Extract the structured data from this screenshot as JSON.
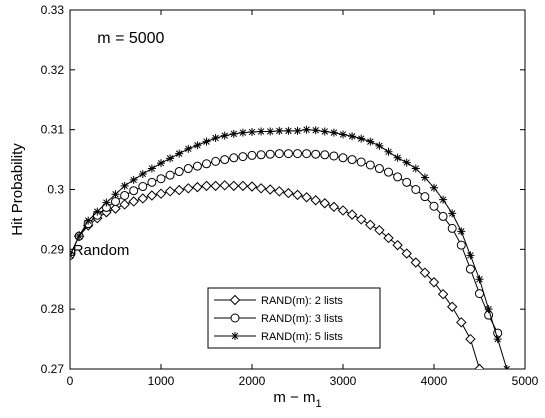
{
  "chart_data": {
    "type": "line",
    "xlabel": "m − m",
    "xlabel_sub": "1",
    "ylabel": "Hit Probability",
    "xlim": [
      0,
      5000
    ],
    "ylim": [
      0.27,
      0.33
    ],
    "xticks": [
      0,
      1000,
      2000,
      3000,
      4000,
      5000
    ],
    "xtick_labels": [
      "0",
      "1000",
      "2000",
      "3000",
      "4000",
      "5000"
    ],
    "yticks": [
      0.27,
      0.28,
      0.29,
      0.3,
      0.31,
      0.32,
      0.33
    ],
    "ytick_labels": [
      "0.27",
      "0.28",
      "0.29",
      "0.3",
      "0.31",
      "0.32",
      "0.33"
    ],
    "grid": false,
    "legend_position": "bottom-center",
    "annotations": [
      {
        "text": "m = 5000",
        "x": 300,
        "y": 0.3245
      },
      {
        "text": "Random",
        "x": 30,
        "y": 0.2892
      }
    ],
    "series": [
      {
        "name": "RAND(m): 2 lists",
        "marker": "diamond",
        "x": [
          0,
          100,
          200,
          300,
          400,
          500,
          600,
          700,
          800,
          900,
          1000,
          1100,
          1200,
          1300,
          1400,
          1500,
          1600,
          1700,
          1800,
          1900,
          2000,
          2100,
          2200,
          2300,
          2400,
          2500,
          2600,
          2700,
          2800,
          2900,
          3000,
          3100,
          3200,
          3300,
          3400,
          3500,
          3600,
          3700,
          3800,
          3900,
          4000,
          4100,
          4200,
          4300,
          4400,
          4500
        ],
        "y": [
          0.289,
          0.2922,
          0.294,
          0.2952,
          0.2962,
          0.2968,
          0.2975,
          0.298,
          0.2985,
          0.299,
          0.2993,
          0.2997,
          0.2999,
          0.3002,
          0.3004,
          0.3006,
          0.3006,
          0.3007,
          0.3006,
          0.3006,
          0.3005,
          0.3002,
          0.3,
          0.2997,
          0.2994,
          0.2991,
          0.2987,
          0.2982,
          0.2977,
          0.2971,
          0.2965,
          0.2958,
          0.295,
          0.2941,
          0.2932,
          0.2919,
          0.2907,
          0.2893,
          0.2878,
          0.2861,
          0.2845,
          0.2825,
          0.2804,
          0.2778,
          0.275,
          0.27
        ]
      },
      {
        "name": "RAND(m): 3 lists",
        "marker": "circle",
        "x": [
          0,
          100,
          200,
          300,
          400,
          500,
          600,
          700,
          800,
          900,
          1000,
          1100,
          1200,
          1300,
          1400,
          1500,
          1600,
          1700,
          1800,
          1900,
          2000,
          2100,
          2200,
          2300,
          2400,
          2500,
          2600,
          2700,
          2800,
          2900,
          3000,
          3100,
          3200,
          3300,
          3400,
          3500,
          3600,
          3700,
          3800,
          3900,
          4000,
          4100,
          4200,
          4300,
          4400,
          4500,
          4600,
          4700
        ],
        "y": [
          0.289,
          0.2922,
          0.2943,
          0.2957,
          0.297,
          0.298,
          0.299,
          0.2998,
          0.3005,
          0.3012,
          0.3018,
          0.3024,
          0.303,
          0.3035,
          0.3039,
          0.3043,
          0.3047,
          0.305,
          0.3053,
          0.3055,
          0.3057,
          0.3058,
          0.3059,
          0.306,
          0.306,
          0.306,
          0.306,
          0.3059,
          0.3058,
          0.3056,
          0.3053,
          0.305,
          0.3046,
          0.3041,
          0.3035,
          0.3029,
          0.3021,
          0.3012,
          0.3,
          0.2988,
          0.2972,
          0.2955,
          0.2935,
          0.2907,
          0.2867,
          0.2826,
          0.279,
          0.276
        ]
      },
      {
        "name": "RAND(m): 5 lists",
        "marker": "star",
        "x": [
          0,
          100,
          200,
          300,
          400,
          500,
          600,
          700,
          800,
          900,
          1000,
          1100,
          1200,
          1300,
          1400,
          1500,
          1600,
          1700,
          1800,
          1900,
          2000,
          2100,
          2200,
          2300,
          2400,
          2500,
          2600,
          2700,
          2800,
          2900,
          3000,
          3100,
          3200,
          3300,
          3400,
          3500,
          3600,
          3700,
          3800,
          3900,
          4000,
          4100,
          4200,
          4300,
          4400,
          4500,
          4600,
          4700,
          4800
        ],
        "y": [
          0.289,
          0.2922,
          0.2948,
          0.2963,
          0.2978,
          0.2992,
          0.3006,
          0.3016,
          0.3026,
          0.3035,
          0.3044,
          0.3052,
          0.306,
          0.3068,
          0.3074,
          0.308,
          0.3086,
          0.309,
          0.3093,
          0.3095,
          0.3096,
          0.3097,
          0.3097,
          0.3098,
          0.3098,
          0.3098,
          0.31,
          0.3099,
          0.3097,
          0.3095,
          0.3092,
          0.3089,
          0.3085,
          0.308,
          0.3073,
          0.3063,
          0.3053,
          0.3045,
          0.3035,
          0.302,
          0.3003,
          0.2983,
          0.296,
          0.293,
          0.289,
          0.285,
          0.28,
          0.275,
          0.27
        ]
      }
    ]
  }
}
